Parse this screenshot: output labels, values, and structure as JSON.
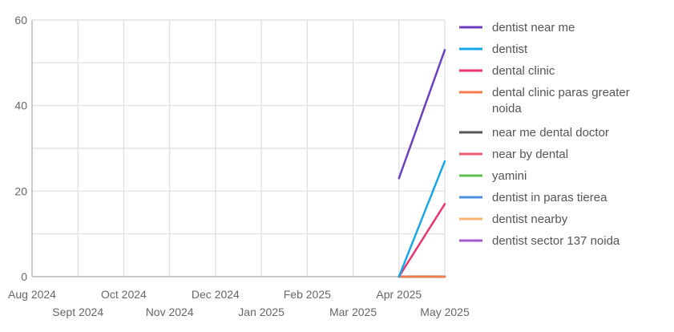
{
  "chart_data": {
    "type": "line",
    "x": [
      "Aug 2024",
      "Sept 2024",
      "Oct 2024",
      "Nov 2024",
      "Dec 2024",
      "Jan 2025",
      "Feb 2025",
      "Mar 2025",
      "Apr 2025",
      "May 2025"
    ],
    "ylim": [
      0,
      60
    ],
    "yticks": [
      0,
      20,
      40,
      60
    ],
    "grid": true,
    "legend_position": "right",
    "series": [
      {
        "name": "dentist near me",
        "color": "#6d3fc0",
        "values": [
          null,
          null,
          null,
          null,
          null,
          null,
          null,
          null,
          23,
          53
        ]
      },
      {
        "name": "dentist",
        "color": "#16a7e8",
        "values": [
          null,
          null,
          null,
          null,
          null,
          null,
          null,
          null,
          0,
          27
        ]
      },
      {
        "name": "dental clinic",
        "color": "#e8336d",
        "values": [
          null,
          null,
          null,
          null,
          null,
          null,
          null,
          null,
          0,
          17
        ]
      },
      {
        "name": "dental clinic paras greater noida",
        "color": "#f57c4a",
        "values": [
          null,
          null,
          null,
          null,
          null,
          null,
          null,
          null,
          0,
          0
        ]
      },
      {
        "name": "near me dental doctor",
        "color": "#555555",
        "values": [
          null,
          null,
          null,
          null,
          null,
          null,
          null,
          null,
          0,
          0
        ]
      },
      {
        "name": "near by dental",
        "color": "#ef5b6e",
        "values": [
          null,
          null,
          null,
          null,
          null,
          null,
          null,
          null,
          0,
          0
        ]
      },
      {
        "name": "yamini",
        "color": "#5cc24f",
        "values": [
          null,
          null,
          null,
          null,
          null,
          null,
          null,
          null,
          0,
          0
        ]
      },
      {
        "name": "dentist in paras tierea",
        "color": "#4a90e2",
        "values": [
          null,
          null,
          null,
          null,
          null,
          null,
          null,
          null,
          0,
          0
        ]
      },
      {
        "name": "dentist nearby",
        "color": "#f7b36b",
        "values": [
          null,
          null,
          null,
          null,
          null,
          null,
          null,
          null,
          0,
          0
        ]
      },
      {
        "name": "dentist sector 137 noida",
        "color": "#a357c9",
        "values": [
          null,
          null,
          null,
          null,
          null,
          null,
          null,
          null,
          0,
          0
        ]
      }
    ]
  }
}
